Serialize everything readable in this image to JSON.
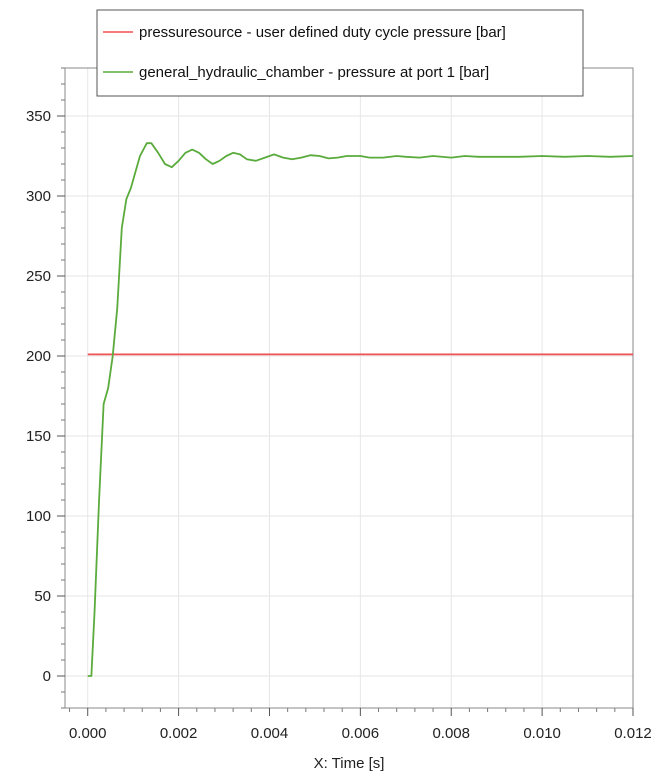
{
  "chart_data": {
    "type": "line",
    "xlabel": "X: Time [s]",
    "ylabel": "",
    "xlim": [
      -0.0005,
      0.012
    ],
    "ylim": [
      -20,
      380
    ],
    "x_ticks": [
      0.0,
      0.002,
      0.004,
      0.006,
      0.008,
      0.01,
      0.012
    ],
    "x_tick_labels": [
      "0.000",
      "0.002",
      "0.004",
      "0.006",
      "0.008",
      "0.010",
      "0.012"
    ],
    "y_ticks": [
      0,
      50,
      100,
      150,
      200,
      250,
      300,
      350
    ],
    "y_tick_labels": [
      "0",
      "50",
      "100",
      "150",
      "200",
      "250",
      "300",
      "350"
    ],
    "grid": true,
    "legend_position": "top",
    "series": [
      {
        "name": "pressuresource - user defined duty cycle pressure [bar]",
        "color": "#f05050",
        "points": [
          [
            0.0,
            201
          ],
          [
            0.012,
            201
          ]
        ]
      },
      {
        "name": "general_hydraulic_chamber - pressure at port 1 [bar]",
        "color": "#5aab3c",
        "points": [
          [
            0.0,
            0
          ],
          [
            8e-05,
            0
          ],
          [
            0.00015,
            40
          ],
          [
            0.00025,
            110
          ],
          [
            0.00035,
            170
          ],
          [
            0.00045,
            180
          ],
          [
            0.00055,
            200
          ],
          [
            0.00065,
            230
          ],
          [
            0.00075,
            280
          ],
          [
            0.00085,
            298
          ],
          [
            0.00095,
            305
          ],
          [
            0.00105,
            315
          ],
          [
            0.00115,
            325
          ],
          [
            0.0013,
            333
          ],
          [
            0.0014,
            333
          ],
          [
            0.00155,
            327
          ],
          [
            0.0017,
            320
          ],
          [
            0.00185,
            318
          ],
          [
            0.002,
            322
          ],
          [
            0.00215,
            327
          ],
          [
            0.0023,
            329
          ],
          [
            0.00245,
            327
          ],
          [
            0.0026,
            323
          ],
          [
            0.00275,
            320
          ],
          [
            0.0029,
            322
          ],
          [
            0.00305,
            325
          ],
          [
            0.0032,
            327
          ],
          [
            0.00335,
            326
          ],
          [
            0.0035,
            323
          ],
          [
            0.0037,
            322
          ],
          [
            0.0039,
            324
          ],
          [
            0.0041,
            326
          ],
          [
            0.0043,
            324
          ],
          [
            0.0045,
            323
          ],
          [
            0.0047,
            324
          ],
          [
            0.0049,
            325.5
          ],
          [
            0.0051,
            325
          ],
          [
            0.0053,
            323.5
          ],
          [
            0.0055,
            324
          ],
          [
            0.0057,
            325
          ],
          [
            0.006,
            325
          ],
          [
            0.0062,
            324
          ],
          [
            0.0065,
            324
          ],
          [
            0.0068,
            325
          ],
          [
            0.007,
            324.5
          ],
          [
            0.0073,
            324
          ],
          [
            0.0076,
            325
          ],
          [
            0.008,
            324
          ],
          [
            0.0083,
            325
          ],
          [
            0.0086,
            324.5
          ],
          [
            0.009,
            324.5
          ],
          [
            0.0095,
            324.5
          ],
          [
            0.01,
            325
          ],
          [
            0.0105,
            324.5
          ],
          [
            0.011,
            325
          ],
          [
            0.0115,
            324.5
          ],
          [
            0.012,
            325
          ]
        ]
      }
    ]
  }
}
